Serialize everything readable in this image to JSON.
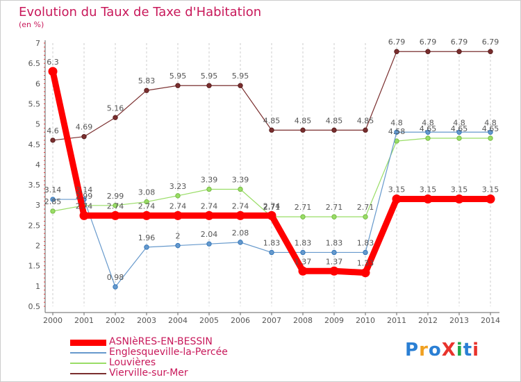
{
  "title": "Evolution du Taux de Taxe d'Habitation",
  "unit_label": "(en %)",
  "logo": {
    "text": "ProXiti",
    "colors": [
      "#2a7fd4",
      "#f0a020",
      "#2a7fd4",
      "#e8332c",
      "#1fa84b",
      "#2a7fd4",
      "#e8332c"
    ]
  },
  "chart_data": {
    "type": "line",
    "x": [
      "2000",
      "2001",
      "2002",
      "2003",
      "2004",
      "2005",
      "2006",
      "2007",
      "2008",
      "2009",
      "2010",
      "2011",
      "2012",
      "2013",
      "2014"
    ],
    "ylim": [
      0.5,
      7
    ],
    "yticks": [
      "0.5",
      "1",
      "1.5",
      "2",
      "2.5",
      "3",
      "3.5",
      "4",
      "4.5",
      "5",
      "5.5",
      "6",
      "6.5",
      "7"
    ],
    "grid": "vertical-dashed",
    "legend": "bottom",
    "series": [
      {
        "name": "ASNIèRES-EN-BESSIN",
        "color": "#ff0000",
        "values": [
          6.3,
          2.74,
          2.74,
          2.74,
          2.74,
          2.74,
          2.74,
          2.74,
          1.37,
          1.37,
          1.33,
          3.15,
          3.15,
          3.15,
          3.15
        ],
        "labels": [
          "6.3",
          "2.74",
          "2.74",
          "2.74",
          "2.74",
          "2.74",
          "2.74",
          "2.74",
          "1.37",
          "1.37",
          "1.33",
          "3.15",
          "3.15",
          "3.15",
          "3.15"
        ]
      },
      {
        "name": "Englesqueville-la-Percée",
        "color": "#6699cc",
        "values": [
          3.14,
          3.14,
          0.98,
          1.96,
          2,
          2.04,
          2.08,
          1.83,
          1.83,
          1.83,
          1.83,
          4.8,
          4.8,
          4.8,
          4.8
        ],
        "labels": [
          "3.14",
          "3.14",
          "0.98",
          "1.96",
          "2",
          "2.04",
          "2.08",
          "1.83",
          "1.83",
          "1.83",
          "1.83",
          "4.8",
          "4.8",
          "4.8",
          "4.8"
        ]
      },
      {
        "name": "Louvières",
        "color": "#99dd66",
        "values": [
          2.85,
          2.99,
          2.99,
          3.08,
          3.23,
          3.39,
          3.39,
          2.71,
          2.71,
          2.71,
          2.71,
          4.58,
          4.65,
          4.65,
          4.65
        ],
        "labels": [
          "2.85",
          "2.99",
          "2.99",
          "3.08",
          "3.23",
          "3.39",
          "3.39",
          "2.71",
          "2.71",
          "2.71",
          "2.71",
          "4.58",
          "4.65",
          "4.65",
          "4.65"
        ]
      },
      {
        "name": "Vierville-sur-Mer",
        "color": "#7a2e2e",
        "values": [
          4.6,
          4.69,
          5.16,
          5.83,
          5.95,
          5.95,
          5.95,
          4.85,
          4.85,
          4.85,
          4.85,
          6.79,
          6.79,
          6.79,
          6.79
        ],
        "labels": [
          "4.6",
          "4.69",
          "5.16",
          "5.83",
          "5.95",
          "5.95",
          "5.95",
          "4.85",
          "4.85",
          "4.85",
          "4.85",
          "6.79",
          "6.79",
          "6.79",
          "6.79"
        ]
      }
    ]
  }
}
